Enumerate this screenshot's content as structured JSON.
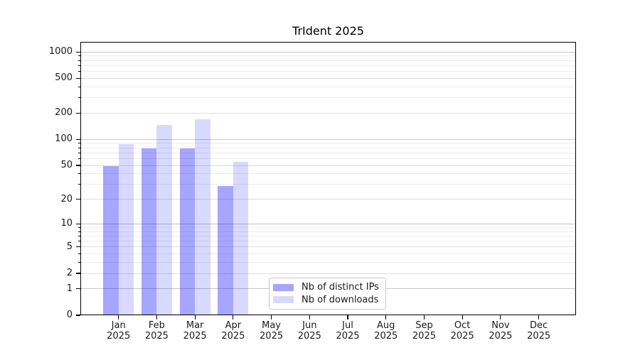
{
  "chart_data": {
    "type": "bar",
    "title": "TrIdent 2025",
    "months": [
      "Jan",
      "Feb",
      "Mar",
      "Apr",
      "May",
      "Jun",
      "Jul",
      "Aug",
      "Sep",
      "Oct",
      "Nov",
      "Dec"
    ],
    "year": "2025",
    "series": [
      {
        "name": "Nb of distinct IPs",
        "color": "rgba(0,0,255,0.35)",
        "values": [
          49,
          79,
          79,
          29,
          0,
          0,
          0,
          0,
          0,
          0,
          0,
          0
        ]
      },
      {
        "name": "Nb of downloads",
        "color": "rgba(0,0,255,0.15)",
        "values": [
          88,
          147,
          170,
          55,
          0,
          0,
          0,
          0,
          0,
          0,
          0,
          0
        ]
      }
    ],
    "yscale": "log10(1+y)",
    "ylim": [
      0,
      1320
    ],
    "yticks": [
      0,
      1,
      2,
      5,
      10,
      20,
      50,
      100,
      200,
      500,
      1000
    ],
    "grid": {
      "major_levels": [
        1,
        10,
        100,
        1000
      ],
      "mid_levels": [
        2,
        5,
        20,
        50,
        200,
        500
      ],
      "minor_levels": [
        3,
        4,
        6,
        7,
        8,
        9,
        30,
        40,
        60,
        70,
        80,
        90,
        300,
        400,
        600,
        700,
        800,
        900
      ],
      "major_color": "#c6c6c6",
      "mid_color": "#dedede",
      "minor_color": "#ececec"
    },
    "legend": {
      "position": "lower center"
    },
    "colors": {
      "background": "#ffffff",
      "axis": "#000000",
      "text": "#1a1a1a"
    }
  }
}
